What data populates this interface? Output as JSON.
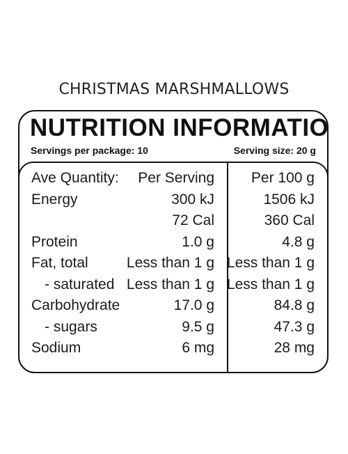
{
  "product": {
    "name": "CHRISTMAS MARSHMALLOWS"
  },
  "panel": {
    "heading": "NUTRITION INFORMATION",
    "servings_per_package": "Servings per package: 10",
    "serving_size": "Serving size: 20 g"
  },
  "table": {
    "header": {
      "label": "Ave Quantity:",
      "per_serving": "Per Serving",
      "per_100g": "Per 100 g"
    },
    "rows": [
      {
        "label": "Energy",
        "per_serving": "300 kJ",
        "per_100g": "1506 kJ"
      },
      {
        "label": "",
        "per_serving": "72 Cal",
        "per_100g": "360 Cal"
      },
      {
        "label": "Protein",
        "per_serving": "1.0 g",
        "per_100g": "4.8 g"
      },
      {
        "label": "Fat, total",
        "per_serving": "Less than 1 g",
        "per_100g": "Less than 1 g"
      },
      {
        "label": "- saturated",
        "per_serving": "Less than 1 g",
        "per_100g": "Less than 1 g"
      },
      {
        "label": "Carbohydrate",
        "per_serving": "17.0 g",
        "per_100g": "84.8 g"
      },
      {
        "label": "- sugars",
        "per_serving": "9.5 g",
        "per_100g": "47.3 g"
      },
      {
        "label": "Sodium",
        "per_serving": "6 mg",
        "per_100g": "28 mg"
      }
    ]
  }
}
